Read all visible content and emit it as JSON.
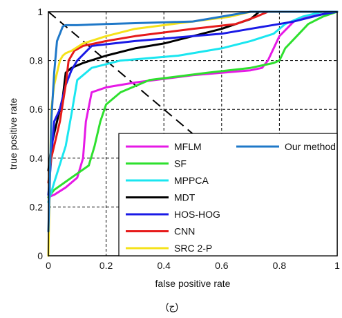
{
  "chart_data": {
    "type": "line",
    "title": "",
    "xlabel": "false positive rate",
    "ylabel": "true positive rate",
    "xlim": [
      0,
      1
    ],
    "ylim": [
      0,
      1
    ],
    "x_ticks": [
      "0",
      "0.2",
      "0.4",
      "0.6",
      "0.8",
      "1"
    ],
    "y_ticks": [
      "0",
      "0.2",
      "0.4",
      "0.6",
      "0.8",
      "1"
    ],
    "grid": true,
    "caption": "(ج)",
    "legend_position": "bottom-right",
    "diagonal": {
      "from": [
        0,
        1
      ],
      "to": [
        1,
        0
      ],
      "style": "dashed",
      "color": "#000000"
    },
    "series": [
      {
        "name": "MFLM",
        "color": "#e619e6",
        "x": [
          0,
          0.02,
          0.06,
          0.1,
          0.12,
          0.13,
          0.15,
          0.2,
          0.3,
          0.5,
          0.6,
          0.7,
          0.74,
          0.76,
          0.8,
          0.85,
          0.9,
          1
        ],
        "y": [
          0.24,
          0.25,
          0.28,
          0.32,
          0.4,
          0.55,
          0.67,
          0.69,
          0.71,
          0.74,
          0.75,
          0.76,
          0.77,
          0.8,
          0.9,
          0.96,
          0.98,
          1
        ]
      },
      {
        "name": "SF",
        "color": "#2ee02e",
        "x": [
          0,
          0.02,
          0.08,
          0.14,
          0.16,
          0.18,
          0.2,
          0.25,
          0.35,
          0.55,
          0.7,
          0.78,
          0.8,
          0.82,
          0.86,
          0.9,
          0.95,
          1
        ],
        "y": [
          0.24,
          0.27,
          0.32,
          0.37,
          0.45,
          0.55,
          0.62,
          0.67,
          0.72,
          0.75,
          0.77,
          0.79,
          0.8,
          0.85,
          0.9,
          0.95,
          0.98,
          1
        ]
      },
      {
        "name": "MPPCA",
        "color": "#1ae6f0",
        "x": [
          0,
          0.02,
          0.06,
          0.08,
          0.1,
          0.15,
          0.25,
          0.45,
          0.6,
          0.7,
          0.78,
          0.82,
          0.88,
          0.95,
          1
        ],
        "y": [
          0.22,
          0.3,
          0.45,
          0.58,
          0.72,
          0.77,
          0.8,
          0.82,
          0.85,
          0.88,
          0.91,
          0.95,
          0.98,
          1,
          1
        ]
      },
      {
        "name": "MDT",
        "color": "#000000",
        "x": [
          0,
          0.01,
          0.03,
          0.05,
          0.06,
          0.08,
          0.12,
          0.2,
          0.3,
          0.4,
          0.5,
          0.6,
          0.7,
          0.73,
          1
        ],
        "y": [
          0.35,
          0.45,
          0.55,
          0.65,
          0.75,
          0.77,
          0.79,
          0.82,
          0.85,
          0.87,
          0.9,
          0.93,
          0.97,
          1,
          1
        ]
      },
      {
        "name": "HOS-HOG",
        "color": "#1a1ae6",
        "x": [
          0,
          0.01,
          0.02,
          0.04,
          0.06,
          0.08,
          0.1,
          0.15,
          0.3,
          0.5,
          0.6,
          0.7,
          0.75,
          0.8,
          0.85,
          0.95,
          1
        ],
        "y": [
          0.25,
          0.4,
          0.55,
          0.6,
          0.7,
          0.76,
          0.8,
          0.86,
          0.88,
          0.9,
          0.91,
          0.93,
          0.94,
          0.95,
          0.96,
          0.99,
          1
        ]
      },
      {
        "name": "CNN",
        "color": "#e61a1a",
        "x": [
          0,
          0.01,
          0.04,
          0.06,
          0.07,
          0.09,
          0.12,
          0.2,
          0.3,
          0.5,
          0.65,
          0.72,
          0.76,
          1
        ],
        "y": [
          0.3,
          0.4,
          0.55,
          0.7,
          0.8,
          0.84,
          0.86,
          0.88,
          0.9,
          0.93,
          0.95,
          0.98,
          1,
          1
        ]
      },
      {
        "name": "SRC 2-P",
        "color": "#f5e21a",
        "x": [
          0,
          0.005,
          0.01,
          0.02,
          0.04,
          0.05,
          0.06,
          0.08,
          0.12,
          0.2,
          0.3,
          0.5,
          0.63,
          0.7,
          1
        ],
        "y": [
          0,
          0.3,
          0.6,
          0.7,
          0.8,
          0.82,
          0.83,
          0.84,
          0.87,
          0.9,
          0.93,
          0.96,
          0.98,
          1,
          1
        ]
      },
      {
        "name": "Our method",
        "color": "#1f78c8",
        "x": [
          0,
          0.005,
          0.01,
          0.02,
          0.03,
          0.05,
          0.06,
          0.1,
          0.2,
          0.5,
          0.65,
          0.7,
          0.8,
          1
        ],
        "y": [
          0.1,
          0.3,
          0.55,
          0.75,
          0.88,
          0.94,
          0.945,
          0.945,
          0.95,
          0.96,
          0.99,
          1,
          1,
          1
        ]
      }
    ]
  }
}
